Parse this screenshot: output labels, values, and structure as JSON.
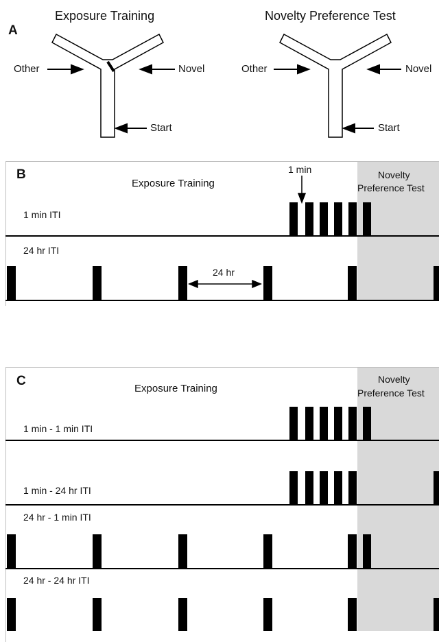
{
  "panelA": {
    "letter": "A",
    "left_title": "Exposure Training",
    "right_title": "Novelty Preference Test",
    "arm_labels": {
      "other": "Other",
      "novel": "Novel",
      "start": "Start"
    }
  },
  "panelB": {
    "letter": "B",
    "title": "Exposure Training",
    "test_label_line1": "Novelty",
    "test_label_line2": "Preference Test",
    "interval_1min": "1 min",
    "interval_24hr": "24 hr",
    "rows": [
      {
        "label": "1 min ITI"
      },
      {
        "label": "24 hr ITI"
      }
    ]
  },
  "panelC": {
    "letter": "C",
    "title": "Exposure Training",
    "test_label_line1": "Novelty",
    "test_label_line2": "Preference Test",
    "rows": [
      {
        "label": "1 min - 1 min ITI"
      },
      {
        "label": "1 min - 24 hr ITI"
      },
      {
        "label": "24 hr - 1 min ITI"
      },
      {
        "label": "24 hr - 24 hr ITI"
      }
    ]
  },
  "colors": {
    "shade": "#d9d9d9",
    "bars": "#000000"
  }
}
